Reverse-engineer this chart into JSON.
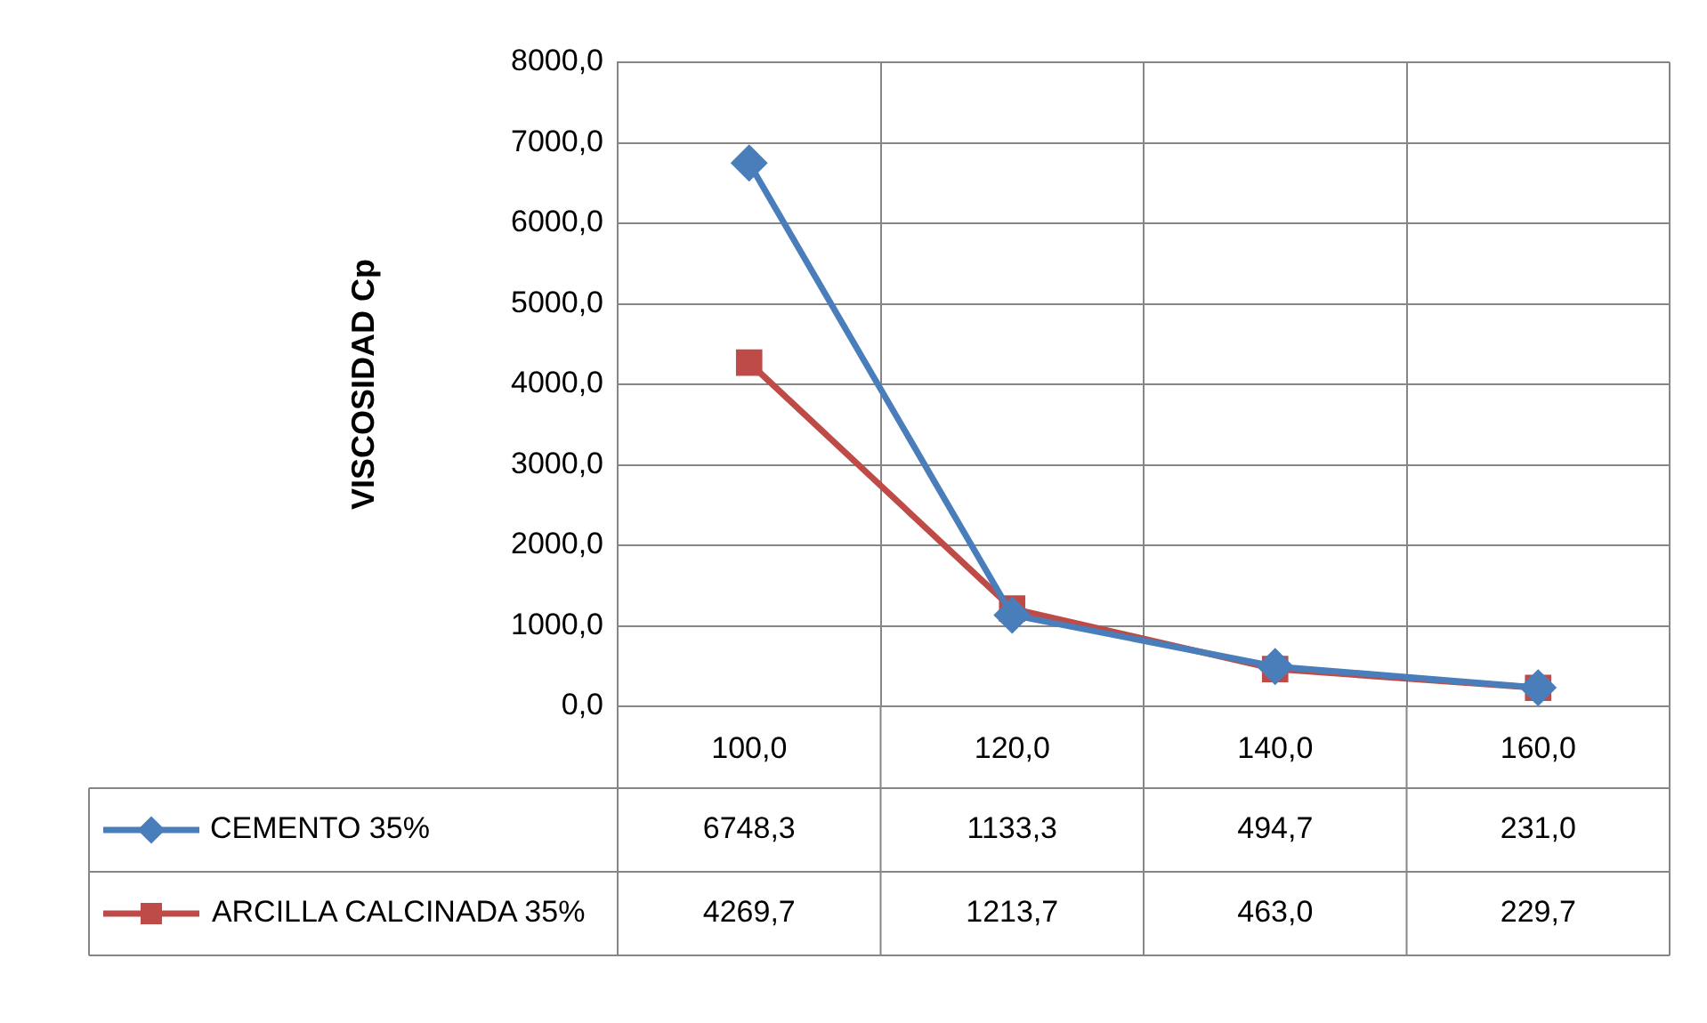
{
  "chart_data": {
    "type": "line",
    "ylabel": "VISCOSIDAD Cp",
    "categories": [
      "100,0",
      "120,0",
      "140,0",
      "160,0"
    ],
    "ylim": [
      0,
      8000
    ],
    "yticks": [
      {
        "value": 0,
        "label": "0,0"
      },
      {
        "value": 1000,
        "label": "1000,0"
      },
      {
        "value": 2000,
        "label": "2000,0"
      },
      {
        "value": 3000,
        "label": "3000,0"
      },
      {
        "value": 4000,
        "label": "4000,0"
      },
      {
        "value": 5000,
        "label": "5000,0"
      },
      {
        "value": 6000,
        "label": "6000,0"
      },
      {
        "value": 7000,
        "label": "7000,0"
      },
      {
        "value": 8000,
        "label": "8000,0"
      }
    ],
    "grid": true,
    "legend": "bottom",
    "line_style": "solid",
    "series": [
      {
        "name": "CEMENTO 35%",
        "color": "#4a7ebb",
        "marker": "diamond",
        "values": [
          6748.3,
          1133.3,
          494.7,
          231.0
        ],
        "value_labels": [
          "6748,3",
          "1133,3",
          "494,7",
          "231,0"
        ]
      },
      {
        "name": "ARCILLA CALCINADA 35%",
        "color": "#be4b48",
        "marker": "square",
        "values": [
          4269.7,
          1213.7,
          463.0,
          229.7
        ],
        "value_labels": [
          "4269,7",
          "1213,7",
          "463,0",
          "229,7"
        ]
      }
    ]
  }
}
